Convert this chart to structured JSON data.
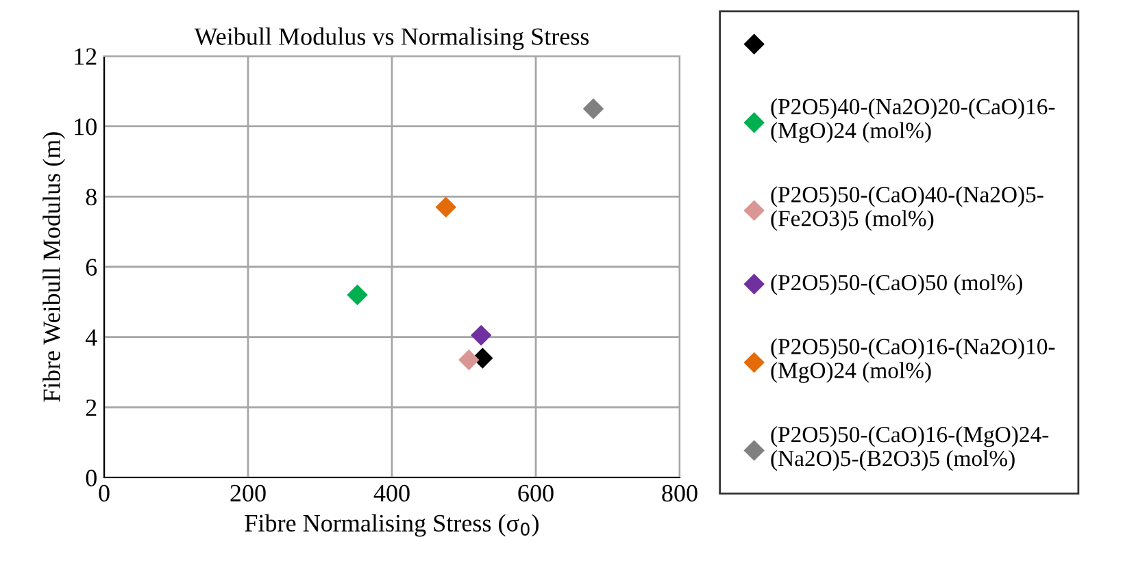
{
  "chart_data": {
    "type": "scatter",
    "title": "Weibull Modulus vs Normalising Stress",
    "xlabel": "Fibre Normalising Stress (σ$_{0}$)",
    "ylabel": "Fibre Weibull Modulus (m)",
    "series": [
      {
        "color": "#000000",
        "x": [
          526
        ],
        "values": [
          3.4
        ]
      },
      {
        "name": "(P2O5)40-(Na2O)20-(CaO)16-\n(MgO)24 (mol%)",
        "color": "#00b050",
        "x": [
          352
        ],
        "values": [
          5.2
        ]
      },
      {
        "name": "(P2O5)50-(CaO)40-(Na2O)5-\n(Fe2O3)5 (mol%)",
        "color": "#d99694",
        "x": [
          507
        ],
        "values": [
          3.35
        ]
      },
      {
        "name": "(P2O5)50-(CaO)50 (mol%)",
        "color": "#7030a0",
        "x": [
          524
        ],
        "values": [
          4.05
        ]
      },
      {
        "name": "(P2O5)50-(CaO)16-(Na2O)10-\n(MgO)24 (mol%)",
        "color": "#e36c09",
        "x": [
          475
        ],
        "values": [
          7.7
        ]
      },
      {
        "name": "(P2O5)50-(CaO)16-(MgO)24-\n(Na2O)5-(B2O3)5 (mol%)",
        "color": "#808080",
        "x": [
          680
        ],
        "values": [
          10.5
        ]
      }
    ],
    "xlim": [
      0,
      800
    ],
    "xticks": [
      0,
      200,
      400,
      600,
      800
    ],
    "ylim": [
      0,
      12
    ],
    "yticks": [
      0,
      2,
      4,
      6,
      8,
      10,
      12
    ],
    "grid": true,
    "legend": "right",
    "marker": "diamond"
  }
}
